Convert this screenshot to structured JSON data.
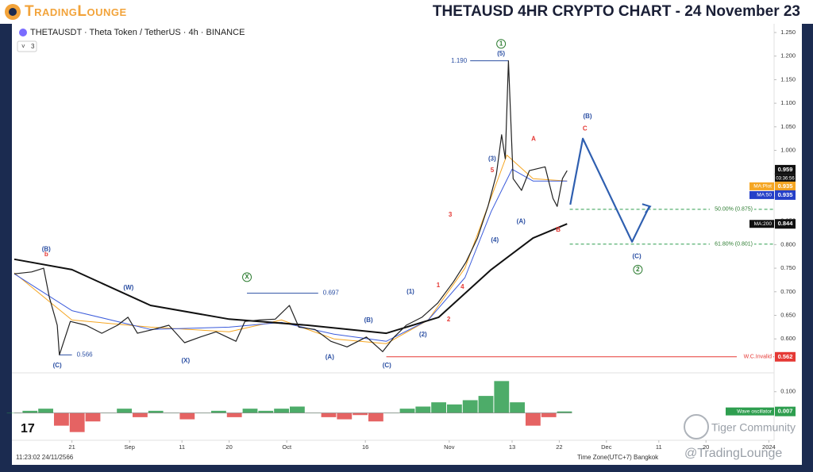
{
  "ui": {
    "logo": "TradingLounge",
    "title": "THETAUSD 4HR CRYPTO CHART - 24 November 23",
    "symbol": "THETAUSDT · Theta Token / TetherUS · 4h · BINANCE",
    "indicator_count": "3",
    "clock": "11:23:02 24/11/2566",
    "timezone": "Time Zone(UTC+7) Bangkok",
    "watermark_1": "Tiger Community",
    "watermark_2": "@TradingLounge",
    "countdown": "03:36:56"
  },
  "chart_data": {
    "type": "line",
    "xlim": [
      9,
      154
    ],
    "ylim": [
      0.53,
      1.25
    ],
    "xticks": [
      {
        "value": 20,
        "label": "21"
      },
      {
        "value": 31,
        "label": "Sep"
      },
      {
        "value": 41,
        "label": "11"
      },
      {
        "value": 50,
        "label": "20"
      },
      {
        "value": 61,
        "label": "Oct"
      },
      {
        "value": 76,
        "label": "16"
      },
      {
        "value": 92,
        "label": "Nov"
      },
      {
        "value": 104,
        "label": "13"
      },
      {
        "value": 113,
        "label": "22"
      },
      {
        "value": 122,
        "label": "Dec"
      },
      {
        "value": 132,
        "label": "11"
      },
      {
        "value": 141,
        "label": "20"
      },
      {
        "value": 153,
        "label": "2024"
      }
    ],
    "yticks": [
      {
        "value": 1.25,
        "label": "1.250"
      },
      {
        "value": 1.2,
        "label": "1.200"
      },
      {
        "value": 1.15,
        "label": "1.150"
      },
      {
        "value": 1.1,
        "label": "1.100"
      },
      {
        "value": 1.05,
        "label": "1.050"
      },
      {
        "value": 1.0,
        "label": "1.000"
      },
      {
        "value": 0.95,
        "label": "0.950"
      },
      {
        "value": 0.9,
        "label": "0.900"
      },
      {
        "value": 0.85,
        "label": "0.850"
      },
      {
        "value": 0.8,
        "label": "0.800"
      },
      {
        "value": 0.75,
        "label": "0.750"
      },
      {
        "value": 0.7,
        "label": "0.700"
      },
      {
        "value": 0.65,
        "label": "0.650"
      },
      {
        "value": 0.6,
        "label": "0.600"
      }
    ],
    "grid": false,
    "series": [
      {
        "color": "#f5a623",
        "width": 1,
        "x": [
          9,
          20,
          35,
          50,
          60,
          70,
          80,
          88,
          95,
          100,
          103,
          108,
          114.5
        ],
        "values": [
          0.74,
          0.64,
          0.625,
          0.615,
          0.64,
          0.6,
          0.59,
          0.64,
          0.75,
          0.9,
          0.99,
          0.94,
          0.935
        ]
      },
      {
        "color": "#3b5bdb",
        "width": 1,
        "x": [
          9,
          20,
          35,
          50,
          60,
          70,
          80,
          88,
          95,
          100,
          104,
          108,
          114.5
        ],
        "values": [
          0.738,
          0.66,
          0.62,
          0.625,
          0.635,
          0.61,
          0.595,
          0.64,
          0.73,
          0.87,
          0.96,
          0.935,
          0.935
        ]
      },
      {
        "color": "#111111",
        "width": 2,
        "x": [
          9,
          20,
          35,
          50,
          65,
          80,
          90,
          100,
          108,
          114.5
        ],
        "values": [
          0.769,
          0.747,
          0.671,
          0.642,
          0.629,
          0.612,
          0.646,
          0.747,
          0.814,
          0.844
        ]
      },
      {
        "color": "#222222",
        "width": 1.2,
        "x": [
          9,
          12.3,
          14.6,
          15.7,
          17.2,
          17.6,
          19.7,
          22.7,
          25.7,
          28.7,
          30.7,
          32.5,
          35.5,
          38.5,
          41.5,
          44.5,
          47.5,
          51.3,
          53,
          55.8,
          58.8,
          61.5,
          63.3,
          66.4,
          69.4,
          72.5,
          76.2,
          79.3,
          81.5,
          83.8,
          86.8,
          89.8,
          92.8,
          95.2,
          97.4,
          99.4,
          101,
          102,
          102.7,
          103.3,
          104.2,
          105.8,
          107.3,
          110.3,
          111.8,
          112.6,
          113.6,
          114.5
        ],
        "values": [
          0.738,
          0.742,
          0.75,
          0.688,
          0.629,
          0.566,
          0.637,
          0.629,
          0.612,
          0.629,
          0.646,
          0.612,
          0.62,
          0.629,
          0.592,
          0.604,
          0.615,
          0.595,
          0.637,
          0.64,
          0.642,
          0.671,
          0.625,
          0.62,
          0.595,
          0.583,
          0.604,
          0.573,
          0.604,
          0.629,
          0.646,
          0.676,
          0.721,
          0.763,
          0.814,
          0.881,
          0.949,
          1.033,
          0.982,
          1.19,
          0.94,
          0.915,
          0.957,
          0.965,
          0.898,
          0.881,
          0.94,
          0.957
        ]
      },
      {
        "color": "#2f5fb0",
        "width": 2.2,
        "x": [
          115.1,
          117.5,
          126.9,
          130.2
        ],
        "values": [
          0.885,
          1.025,
          0.806,
          0.881
        ]
      }
    ],
    "reference_lines": [
      {
        "label": "1.190",
        "value": 1.19,
        "x": [
          96,
          103.3
        ],
        "side": "left"
      },
      {
        "label": "0.697",
        "value": 0.697,
        "x": [
          53.4,
          67
        ],
        "side": "right"
      },
      {
        "label": "0.566",
        "value": 0.566,
        "x": [
          17.6,
          20
        ],
        "side": "right"
      }
    ],
    "fib_levels": [
      {
        "label": "50.00% (0.875)",
        "value": 0.875,
        "x": [
          115,
          154
        ]
      },
      {
        "label": "61.80% (0.801)",
        "value": 0.801,
        "x": [
          115,
          154
        ]
      }
    ],
    "invalidation": {
      "label": "W.C.Invalid",
      "value": 0.562,
      "x": [
        80,
        154
      ]
    },
    "price_tags": [
      {
        "label": "",
        "value": 0.959,
        "color": "#111111"
      },
      {
        "label": "MA:Plot",
        "value": 0.935,
        "color": "#f5a623"
      },
      {
        "label": "MA:50",
        "value": 0.935,
        "color": "#2540c8"
      },
      {
        "label": "MA:200",
        "value": 0.844,
        "color": "#111111"
      }
    ],
    "annotations": [
      {
        "text": "(B)",
        "x": 15.1,
        "y": 0.79,
        "color": "#2b4fa3"
      },
      {
        "text": "b",
        "x": 15.1,
        "y": 0.779,
        "color": "#e53935"
      },
      {
        "text": "(C)",
        "x": 17.2,
        "y": 0.543,
        "color": "#2b4fa3"
      },
      {
        "text": "(W)",
        "x": 30.8,
        "y": 0.708,
        "color": "#2b4fa3"
      },
      {
        "text": "X",
        "x": 53.4,
        "y": 0.731,
        "color": "#2e7d32",
        "circled": true
      },
      {
        "text": "(X)",
        "x": 41.7,
        "y": 0.553,
        "color": "#2b4fa3"
      },
      {
        "text": "(A)",
        "x": 69.2,
        "y": 0.561,
        "color": "#2b4fa3"
      },
      {
        "text": "(B)",
        "x": 76.6,
        "y": 0.639,
        "color": "#2b4fa3"
      },
      {
        "text": "(C)",
        "x": 80.1,
        "y": 0.543,
        "color": "#2b4fa3"
      },
      {
        "text": "(1)",
        "x": 84.6,
        "y": 0.7,
        "color": "#2b4fa3"
      },
      {
        "text": "(2)",
        "x": 87.0,
        "y": 0.609,
        "color": "#2b4fa3"
      },
      {
        "text": "(3)",
        "x": 100.2,
        "y": 0.982,
        "color": "#2b4fa3"
      },
      {
        "text": "(4)",
        "x": 100.7,
        "y": 0.809,
        "color": "#2b4fa3"
      },
      {
        "text": "(5)",
        "x": 101.9,
        "y": 1.205,
        "color": "#2b4fa3"
      },
      {
        "text": "1",
        "x": 101.9,
        "y": 1.226,
        "color": "#2e7d32",
        "circled": true
      },
      {
        "text": "1",
        "x": 89.9,
        "y": 0.713,
        "color": "#e53935"
      },
      {
        "text": "2",
        "x": 91.9,
        "y": 0.641,
        "color": "#e53935"
      },
      {
        "text": "3",
        "x": 92.2,
        "y": 0.863,
        "color": "#e53935"
      },
      {
        "text": "4",
        "x": 94.5,
        "y": 0.71,
        "color": "#e53935"
      },
      {
        "text": "5",
        "x": 100.2,
        "y": 0.957,
        "color": "#e53935"
      },
      {
        "text": "(A)",
        "x": 105.7,
        "y": 0.849,
        "color": "#2b4fa3"
      },
      {
        "text": "A",
        "x": 108.1,
        "y": 1.024,
        "color": "#e53935"
      },
      {
        "text": "B",
        "x": 112.8,
        "y": 0.831,
        "color": "#e53935"
      },
      {
        "text": "(B)",
        "x": 118.4,
        "y": 1.072,
        "color": "#2b4fa3"
      },
      {
        "text": "C",
        "x": 117.9,
        "y": 1.046,
        "color": "#e53935"
      },
      {
        "text": "(C)",
        "x": 127.8,
        "y": 0.775,
        "color": "#2b4fa3"
      },
      {
        "text": "2",
        "x": 128.0,
        "y": 0.747,
        "color": "#2e7d32",
        "circled": true
      }
    ],
    "oscillator": {
      "name": "Wave oscillator",
      "ylim": [
        -0.11,
        0.17
      ],
      "yticks": [
        {
          "value": 0.1,
          "label": "0.100"
        }
      ],
      "last": 0.007,
      "x": [
        9,
        12,
        15,
        18,
        21,
        24,
        27,
        30,
        33,
        36,
        39,
        42,
        45,
        48,
        51,
        54,
        57,
        60,
        63,
        66,
        69,
        72,
        75,
        78,
        81,
        84,
        87,
        90,
        93,
        96,
        99,
        102,
        105,
        108,
        111,
        114
      ],
      "values": [
        0.0,
        0.01,
        0.02,
        -0.06,
        -0.09,
        -0.04,
        0.0,
        0.02,
        -0.02,
        0.01,
        0.0,
        -0.03,
        0.0,
        0.01,
        -0.02,
        0.02,
        0.01,
        0.02,
        0.03,
        0.0,
        -0.02,
        -0.03,
        -0.01,
        -0.04,
        0.0,
        0.02,
        0.03,
        0.05,
        0.04,
        0.06,
        0.08,
        0.15,
        0.05,
        -0.06,
        -0.02,
        0.007
      ],
      "up_color": "#2e9e4f",
      "down_color": "#e04848"
    }
  }
}
